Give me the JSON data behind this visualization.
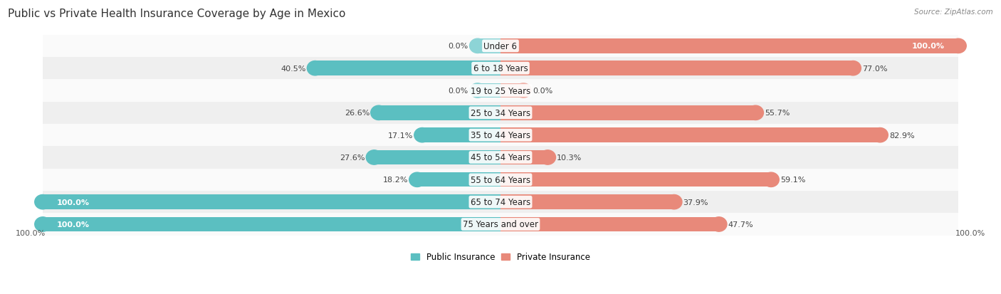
{
  "title": "Public vs Private Health Insurance Coverage by Age in Mexico",
  "source": "Source: ZipAtlas.com",
  "categories": [
    "Under 6",
    "6 to 18 Years",
    "19 to 25 Years",
    "25 to 34 Years",
    "35 to 44 Years",
    "45 to 54 Years",
    "55 to 64 Years",
    "65 to 74 Years",
    "75 Years and over"
  ],
  "public_values": [
    0.0,
    40.5,
    0.0,
    26.6,
    17.1,
    27.6,
    18.2,
    100.0,
    100.0
  ],
  "private_values": [
    100.0,
    77.0,
    0.0,
    55.7,
    82.9,
    10.3,
    59.1,
    37.9,
    47.7
  ],
  "public_color": "#5BBFC1",
  "private_color": "#E8897A",
  "public_stub_color": "#8DD4D6",
  "private_stub_color": "#F0B3AA",
  "row_bg_even": "#FAFAFA",
  "row_bg_odd": "#EFEFEF",
  "title_color": "#333333",
  "source_color": "#888888",
  "value_color_dark": "#444444",
  "value_color_white": "#FFFFFF",
  "title_fontsize": 11,
  "cat_fontsize": 8.5,
  "val_fontsize": 8,
  "bar_height": 0.65,
  "stub_size": 5.0,
  "max_val": 100.0,
  "axis_label": "100.0%",
  "legend_public": "Public Insurance",
  "legend_private": "Private Insurance"
}
